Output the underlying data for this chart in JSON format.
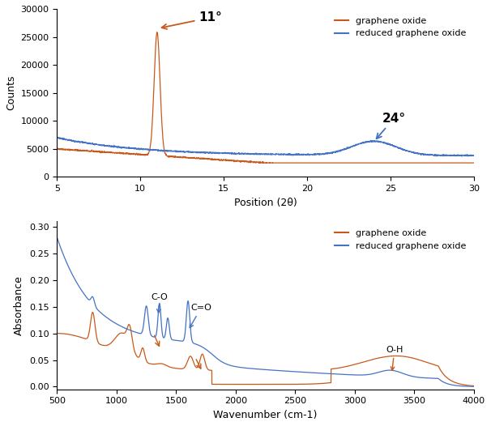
{
  "xrd": {
    "xlim": [
      5,
      30
    ],
    "ylim": [
      0,
      30000
    ],
    "xlabel": "Position (2θ)",
    "ylabel": "Counts",
    "yticks": [
      0,
      5000,
      10000,
      15000,
      20000,
      25000,
      30000
    ],
    "xticks": [
      5,
      10,
      15,
      20,
      25,
      30
    ],
    "go_color": "#c8591a",
    "rgo_color": "#4472c4",
    "annotation_11": "11°",
    "annotation_24": "24°"
  },
  "ftir": {
    "xlim": [
      500,
      4000
    ],
    "ylim": [
      -0.005,
      0.31
    ],
    "xlabel": "Wavenumber (cm-1)",
    "ylabel": "Absorbance",
    "yticks": [
      0.0,
      0.05,
      0.1,
      0.15,
      0.2,
      0.25,
      0.3
    ],
    "xticks": [
      500,
      1000,
      1500,
      2000,
      2500,
      3000,
      3500,
      4000
    ],
    "go_color": "#c8591a",
    "rgo_color": "#4472c4",
    "annotation_co": "C-O",
    "annotation_ceo": "C=O",
    "annotation_oh": "O-H"
  },
  "legend_go": "graphene oxide",
  "legend_rgo": "reduced graphene oxide"
}
